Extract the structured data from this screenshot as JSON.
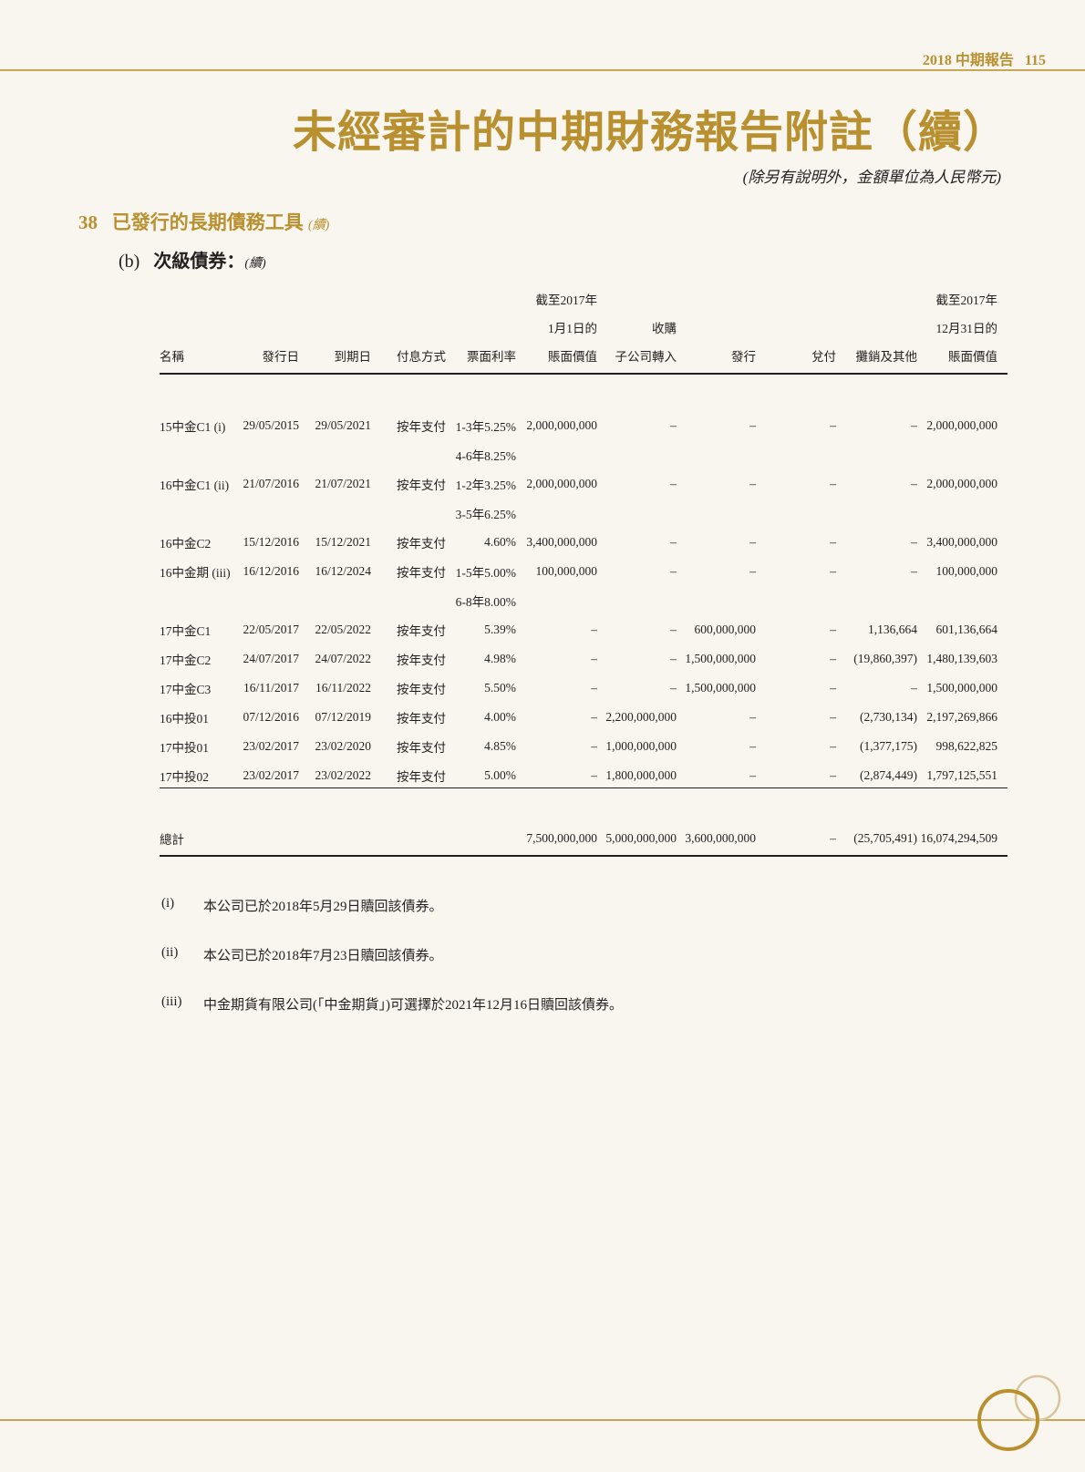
{
  "header": {
    "report": "2018 中期報告",
    "page": "115"
  },
  "title": "未經審計的中期財務報告附註（續）",
  "subtitle": "(除另有說明外，金額單位為人民幣元)",
  "section": {
    "number": "38",
    "title": "已發行的長期債務工具",
    "cont": "(續)"
  },
  "subsection": {
    "label": "(b)",
    "title": "次級債券：",
    "cont": "(續)"
  },
  "table": {
    "headers": [
      [
        "",
        "",
        "",
        "",
        "",
        "",
        "",
        ""
      ],
      [
        "名稱"
      ],
      [
        "發行日"
      ],
      [
        "到期日"
      ],
      [
        "付息方式"
      ],
      [
        "票面利率"
      ],
      [
        "截至2017年",
        "1月1日的",
        "賬面價值"
      ],
      [
        "收購",
        "子公司轉入"
      ],
      [
        "發行"
      ],
      [
        "兌付"
      ],
      [
        "攤銷及其他"
      ],
      [
        "截至2017年",
        "12月31日的",
        "賬面價值"
      ]
    ],
    "rows": [
      [
        "15中金C1 (i)",
        "29/05/2015",
        "29/05/2021",
        "按年支付",
        "1-3年5.25%",
        "2,000,000,000",
        "–",
        "–",
        "–",
        "–",
        "2,000,000,000"
      ],
      [
        "",
        "",
        "",
        "",
        "4-6年8.25%",
        "",
        "",
        "",
        "",
        "",
        ""
      ],
      [
        "16中金C1 (ii)",
        "21/07/2016",
        "21/07/2021",
        "按年支付",
        "1-2年3.25%",
        "2,000,000,000",
        "–",
        "–",
        "–",
        "–",
        "2,000,000,000"
      ],
      [
        "",
        "",
        "",
        "",
        "3-5年6.25%",
        "",
        "",
        "",
        "",
        "",
        ""
      ],
      [
        "16中金C2",
        "15/12/2016",
        "15/12/2021",
        "按年支付",
        "4.60%",
        "3,400,000,000",
        "–",
        "–",
        "–",
        "–",
        "3,400,000,000"
      ],
      [
        "16中金期 (iii)",
        "16/12/2016",
        "16/12/2024",
        "按年支付",
        "1-5年5.00%",
        "100,000,000",
        "–",
        "–",
        "–",
        "–",
        "100,000,000"
      ],
      [
        "",
        "",
        "",
        "",
        "6-8年8.00%",
        "",
        "",
        "",
        "",
        "",
        ""
      ],
      [
        "17中金C1",
        "22/05/2017",
        "22/05/2022",
        "按年支付",
        "5.39%",
        "–",
        "–",
        "600,000,000",
        "–",
        "1,136,664",
        "601,136,664"
      ],
      [
        "17中金C2",
        "24/07/2017",
        "24/07/2022",
        "按年支付",
        "4.98%",
        "–",
        "–",
        "1,500,000,000",
        "–",
        "(19,860,397)",
        "1,480,139,603"
      ],
      [
        "17中金C3",
        "16/11/2017",
        "16/11/2022",
        "按年支付",
        "5.50%",
        "–",
        "–",
        "1,500,000,000",
        "–",
        "–",
        "1,500,000,000"
      ],
      [
        "16中投01",
        "07/12/2016",
        "07/12/2019",
        "按年支付",
        "4.00%",
        "–",
        "2,200,000,000",
        "–",
        "–",
        "(2,730,134)",
        "2,197,269,866"
      ],
      [
        "17中投01",
        "23/02/2017",
        "23/02/2020",
        "按年支付",
        "4.85%",
        "–",
        "1,000,000,000",
        "–",
        "–",
        "(1,377,175)",
        "998,622,825"
      ],
      [
        "17中投02",
        "23/02/2017",
        "23/02/2022",
        "按年支付",
        "5.00%",
        "–",
        "1,800,000,000",
        "–",
        "–",
        "(2,874,449)",
        "1,797,125,551"
      ]
    ],
    "total": [
      "總計",
      "",
      "",
      "",
      "",
      "7,500,000,000",
      "5,000,000,000",
      "3,600,000,000",
      "–",
      "(25,705,491)",
      "16,074,294,509"
    ]
  },
  "notes": [
    {
      "label": "(i)",
      "text": "本公司已於2018年5月29日贖回該債券。"
    },
    {
      "label": "(ii)",
      "text": "本公司已於2018年7月23日贖回該債券。"
    },
    {
      "label": "(iii)",
      "text": "中金期貨有限公司(「中金期貨」)可選擇於2021年12月16日贖回該債券。"
    }
  ],
  "colors": {
    "accent": "#b8902f",
    "background": "#f9f5ef",
    "rule": "#c9a656"
  }
}
